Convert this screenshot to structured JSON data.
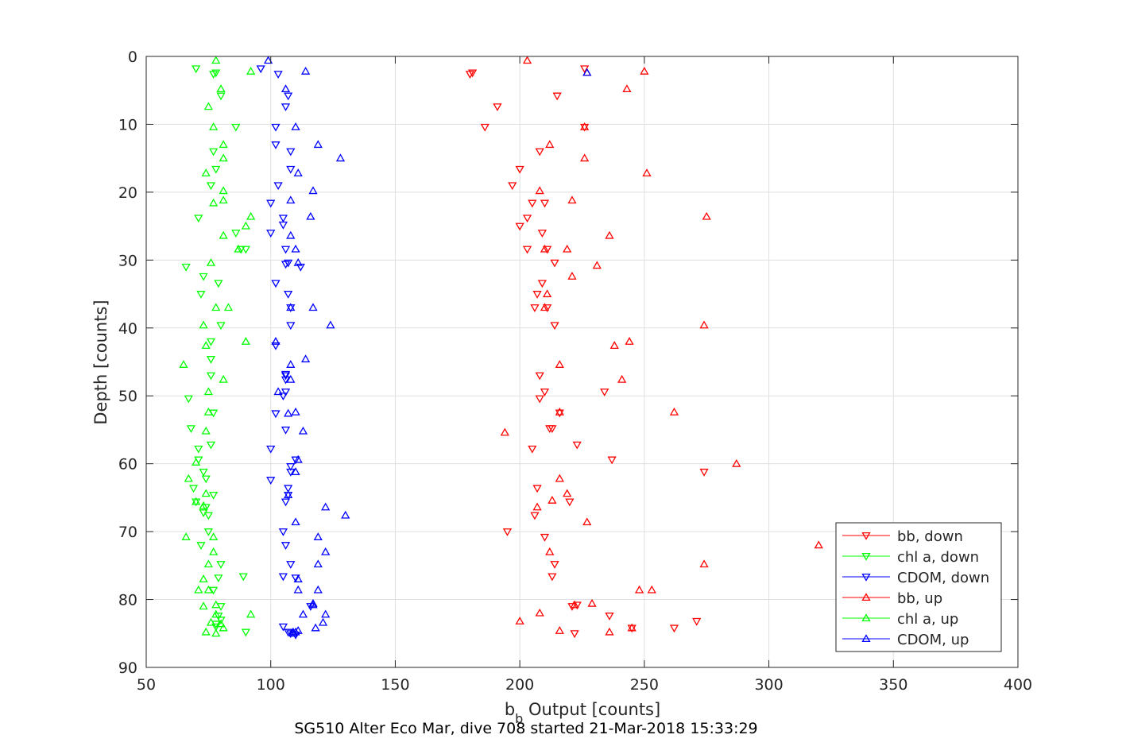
{
  "chart_data": {
    "type": "scatter",
    "xlabel_main": "b",
    "xlabel_sub": "b",
    "xlabel_rest": " Output [counts]",
    "ylabel": "Depth [counts]",
    "caption": "SG510 Alter Eco Mar, dive 708 started 21-Mar-2018 15:33:29",
    "xlim": [
      50,
      400
    ],
    "ylim": [
      0,
      90
    ],
    "y_reversed": true,
    "grid": true,
    "legend_position": "bottom-right",
    "xticks": [
      50,
      100,
      150,
      200,
      250,
      300,
      350,
      400
    ],
    "yticks": [
      0,
      10,
      20,
      30,
      40,
      50,
      60,
      70,
      80,
      90
    ],
    "series": [
      {
        "name": "bb, down",
        "color": "#ff0000",
        "marker": "triangle-down",
        "x": [
          226,
          181,
          180,
          215,
          191,
          186,
          226,
          208,
          200,
          197,
          210,
          205,
          203,
          200,
          209,
          211,
          203,
          214,
          209,
          207,
          214,
          211,
          208,
          206,
          210,
          213,
          234,
          208,
          216,
          212,
          205,
          223,
          237,
          274,
          207,
          220,
          206,
          195,
          210,
          213,
          214,
          221,
          223,
          236,
          245,
          271,
          262,
          222
        ],
        "y": [
          1.8,
          2.4,
          2.6,
          5.8,
          7.4,
          10.4,
          10.4,
          14.0,
          16.6,
          19.0,
          21.6,
          21.6,
          23.8,
          25.0,
          26.0,
          28.4,
          28.4,
          30.4,
          33.4,
          35.0,
          39.6,
          37.0,
          47.0,
          37.0,
          49.4,
          54.8,
          49.4,
          50.4,
          52.5,
          54.8,
          57.8,
          57.2,
          59.4,
          61.2,
          63.6,
          65.6,
          67.6,
          70.0,
          70.8,
          76.6,
          74.8,
          81.0,
          80.8,
          82.4,
          84.2,
          83.2,
          84.2,
          85.0
        ]
      },
      {
        "name": "chl a, down",
        "color": "#00ff00",
        "marker": "triangle-down",
        "x": [
          70,
          77,
          78,
          80,
          86,
          77,
          78,
          76,
          71,
          86,
          88,
          90,
          66,
          73,
          72,
          79,
          80,
          76,
          76,
          76,
          67,
          68,
          77,
          76,
          71,
          71,
          73,
          74,
          69,
          70,
          77,
          75,
          74,
          73,
          75,
          72,
          80,
          79,
          89,
          77,
          80,
          79,
          78,
          90,
          78,
          80
        ],
        "y": [
          1.8,
          2.6,
          2.4,
          5.8,
          10.4,
          14.0,
          16.6,
          19.0,
          23.8,
          26.0,
          28.4,
          28.4,
          31.0,
          32.4,
          35.0,
          33.4,
          39.6,
          42.0,
          44.6,
          47.0,
          50.4,
          54.8,
          52.5,
          57.2,
          57.8,
          59.4,
          61.2,
          62.2,
          63.6,
          65.6,
          64.6,
          67.6,
          66.4,
          67.2,
          70.0,
          72.0,
          74.8,
          76.8,
          76.6,
          78.6,
          81.0,
          82.4,
          83.6,
          84.8,
          84.0,
          83.0
        ]
      },
      {
        "name": "CDOM, down",
        "color": "#0000ff",
        "marker": "triangle-down",
        "x": [
          96,
          103,
          107,
          106,
          102,
          102,
          108,
          108,
          103,
          100,
          105,
          105,
          100,
          106,
          106,
          107,
          112,
          102,
          107,
          108,
          108,
          102,
          106,
          106,
          106,
          106,
          105,
          102,
          106,
          108,
          100,
          108,
          110,
          107,
          100,
          106,
          107,
          105,
          106,
          108,
          110,
          105,
          116,
          105,
          108,
          107,
          110
        ],
        "y": [
          1.8,
          2.6,
          5.8,
          7.4,
          10.4,
          13.0,
          14.0,
          16.6,
          19.0,
          21.6,
          23.8,
          24.8,
          26.0,
          28.4,
          30.6,
          30.4,
          31.0,
          33.4,
          35.0,
          37.0,
          39.6,
          42.6,
          46.8,
          47.0,
          47.6,
          49.4,
          50.0,
          52.6,
          55.0,
          60.4,
          57.8,
          61.2,
          59.4,
          63.6,
          62.4,
          65.6,
          64.6,
          70.0,
          72.0,
          74.8,
          76.8,
          76.6,
          81.0,
          84.0,
          85.0,
          84.8,
          85.2
        ]
      },
      {
        "name": "bb, up",
        "color": "#ff0000",
        "marker": "triangle-up",
        "x": [
          203,
          250,
          227,
          243,
          226,
          212,
          226,
          251,
          208,
          221,
          275,
          236,
          210,
          219,
          231,
          210,
          221,
          211,
          274,
          238,
          244,
          216,
          241,
          216,
          262,
          194,
          287,
          216,
          219,
          213,
          207,
          227,
          320,
          212,
          274,
          253,
          248,
          222,
          245,
          236,
          200,
          208,
          216,
          229
        ],
        "y": [
          0.6,
          2.2,
          2.4,
          4.8,
          10.4,
          13.0,
          15.0,
          17.2,
          19.8,
          21.2,
          23.6,
          26.4,
          28.4,
          28.4,
          30.8,
          37.0,
          32.4,
          35.0,
          39.6,
          42.6,
          42.0,
          45.4,
          47.6,
          52.4,
          52.4,
          55.4,
          60.0,
          62.2,
          64.4,
          65.4,
          66.4,
          68.6,
          72.0,
          73.0,
          74.8,
          78.6,
          78.6,
          80.8,
          84.2,
          84.8,
          83.2,
          82.0,
          84.6,
          80.6
        ]
      },
      {
        "name": "chl a, up",
        "color": "#00ff00",
        "marker": "triangle-up",
        "x": [
          78,
          92,
          80,
          75,
          77,
          81,
          81,
          74,
          81,
          81,
          77,
          92,
          90,
          81,
          87,
          76,
          83,
          78,
          73,
          90,
          74,
          65,
          81,
          75,
          75,
          74,
          70,
          67,
          70,
          74,
          73,
          66,
          77,
          77,
          75,
          71,
          73,
          75,
          78,
          80,
          78,
          76,
          74,
          78,
          81,
          92,
          73
        ],
        "y": [
          0.6,
          2.2,
          4.8,
          7.4,
          10.4,
          13.0,
          15.0,
          17.2,
          19.8,
          21.2,
          21.6,
          23.6,
          25.0,
          26.4,
          28.4,
          30.4,
          37.0,
          37.0,
          39.6,
          42.0,
          42.6,
          45.4,
          47.6,
          49.4,
          52.4,
          55.2,
          59.8,
          62.2,
          65.6,
          64.4,
          66.2,
          70.8,
          70.8,
          73.0,
          74.8,
          78.6,
          77.0,
          78.6,
          80.8,
          83.6,
          82.2,
          83.4,
          84.8,
          85.0,
          84.2,
          82.2,
          81.0
        ]
      },
      {
        "name": "CDOM, up",
        "color": "#0000ff",
        "marker": "triangle-up",
        "x": [
          99,
          114,
          227,
          106,
          110,
          119,
          128,
          111,
          117,
          108,
          116,
          108,
          110,
          111,
          117,
          108,
          124,
          102,
          114,
          108,
          108,
          103,
          110,
          113,
          107,
          111,
          110,
          122,
          107,
          130,
          110,
          119,
          122,
          119,
          117,
          111,
          111,
          119,
          117,
          113,
          121,
          122,
          111,
          118,
          110,
          109,
          109
        ],
        "y": [
          0.6,
          2.2,
          2.4,
          4.8,
          10.4,
          13.0,
          15.0,
          17.2,
          19.8,
          21.2,
          23.6,
          26.4,
          28.4,
          30.4,
          37.0,
          37.0,
          39.6,
          42.0,
          44.6,
          45.4,
          47.6,
          49.4,
          52.4,
          55.2,
          52.6,
          59.4,
          61.2,
          66.4,
          64.6,
          67.6,
          68.6,
          70.8,
          73.0,
          74.8,
          80.6,
          77.0,
          78.6,
          78.6,
          80.8,
          82.2,
          83.4,
          82.2,
          84.6,
          84.2,
          84.8,
          84.8,
          85.0
        ]
      }
    ]
  }
}
